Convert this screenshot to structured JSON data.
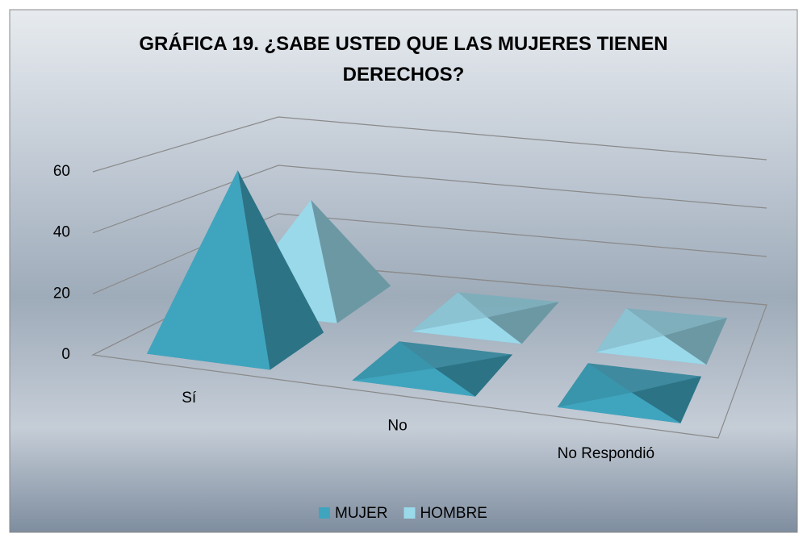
{
  "chart_data": {
    "type": "pyramid3d",
    "title": "GRÁFICA 19. ¿SABE USTED QUE LAS MUJERES TIENEN DERECHOS?",
    "categories": [
      "Sí",
      "No",
      "No Respondió"
    ],
    "series": [
      {
        "name": "MUJER",
        "color": "#3fa5bf",
        "values": [
          60,
          0,
          0
        ]
      },
      {
        "name": "HOMBRE",
        "color": "#9ad9ea",
        "values": [
          38,
          0,
          0
        ]
      }
    ],
    "ylim": [
      0,
      60
    ],
    "yticks": [
      0,
      20,
      40,
      60
    ],
    "grid": true,
    "legend": "bottom"
  }
}
